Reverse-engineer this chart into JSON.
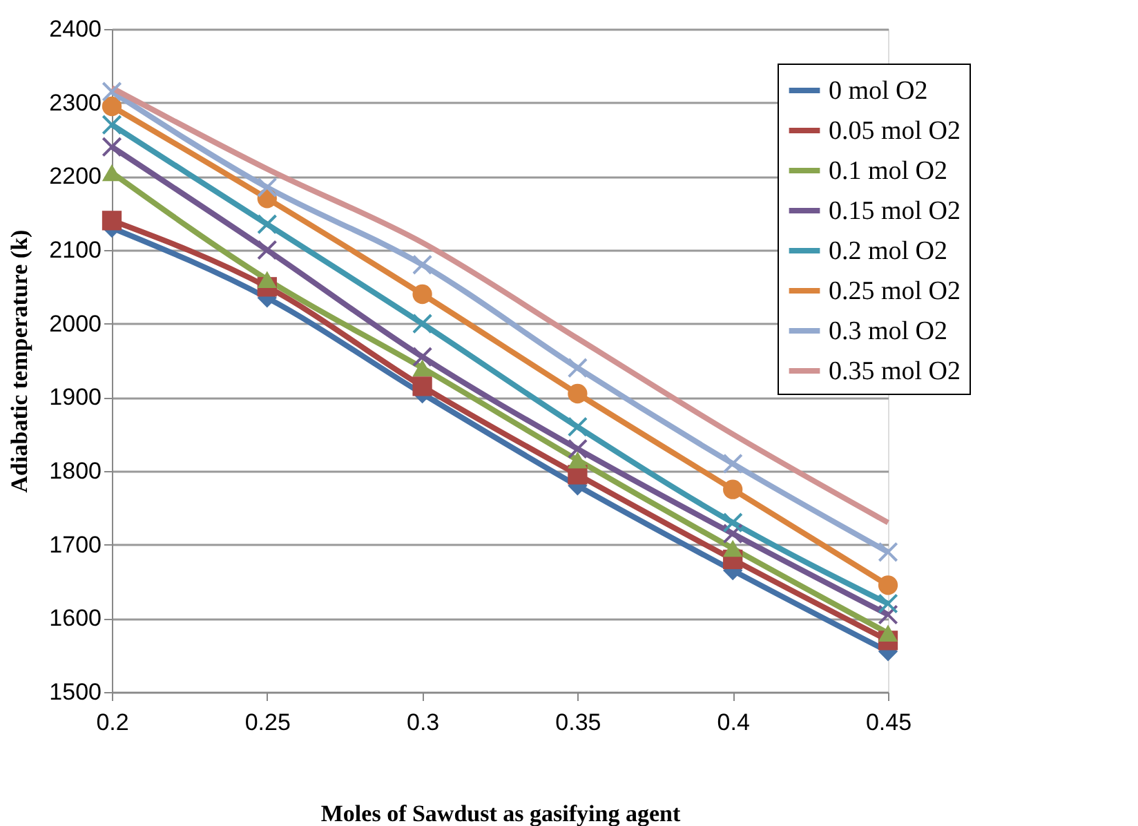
{
  "chart_data": {
    "type": "line",
    "xlabel": "Moles of  Sawdust as gasifying agent",
    "ylabel": "Adiabatic temperature (k)",
    "x": [
      0.2,
      0.25,
      0.3,
      0.35,
      0.4,
      0.45
    ],
    "xlim": [
      0.2,
      0.45
    ],
    "xticks": [
      0.2,
      0.25,
      0.3,
      0.35,
      0.4,
      0.45
    ],
    "ylim": [
      1500,
      2400
    ],
    "yticks": [
      1500,
      1600,
      1700,
      1800,
      1900,
      2000,
      2100,
      2200,
      2300,
      2400
    ],
    "grid": "y",
    "legend": "top right",
    "line_style": "solid",
    "series": [
      {
        "name": "0 mol O2",
        "color": "#4572a7",
        "marker": "diamond",
        "values": [
          2130,
          2035,
          1905,
          1780,
          1665,
          1555
        ]
      },
      {
        "name": "0.05 mol O2",
        "color": "#aa4643",
        "marker": "square",
        "values": [
          2140,
          2050,
          1915,
          1795,
          1680,
          1570
        ]
      },
      {
        "name": "0.1 mol O2",
        "color": "#89a54e",
        "marker": "triangle",
        "values": [
          2205,
          2060,
          1940,
          1815,
          1695,
          1580
        ]
      },
      {
        "name": "0.15 mol O2",
        "color": "#71588f",
        "marker": "cross",
        "values": [
          2240,
          2100,
          1955,
          1830,
          1715,
          1605
        ]
      },
      {
        "name": "0.2 mol O2",
        "color": "#4198af",
        "marker": "cross",
        "values": [
          2270,
          2135,
          2000,
          1860,
          1730,
          1620
        ]
      },
      {
        "name": "0.25 mol O2",
        "color": "#db843d",
        "marker": "circle",
        "values": [
          2295,
          2170,
          2040,
          1905,
          1775,
          1645
        ]
      },
      {
        "name": "0.3 mol O2",
        "color": "#93a9cf",
        "marker": "cross",
        "values": [
          2315,
          2185,
          2080,
          1940,
          1810,
          1690
        ]
      },
      {
        "name": "0.35 mol O2",
        "color": "#d19392",
        "marker": "none",
        "values": [
          2320,
          2210,
          2110,
          1980,
          1850,
          1730
        ]
      }
    ]
  }
}
